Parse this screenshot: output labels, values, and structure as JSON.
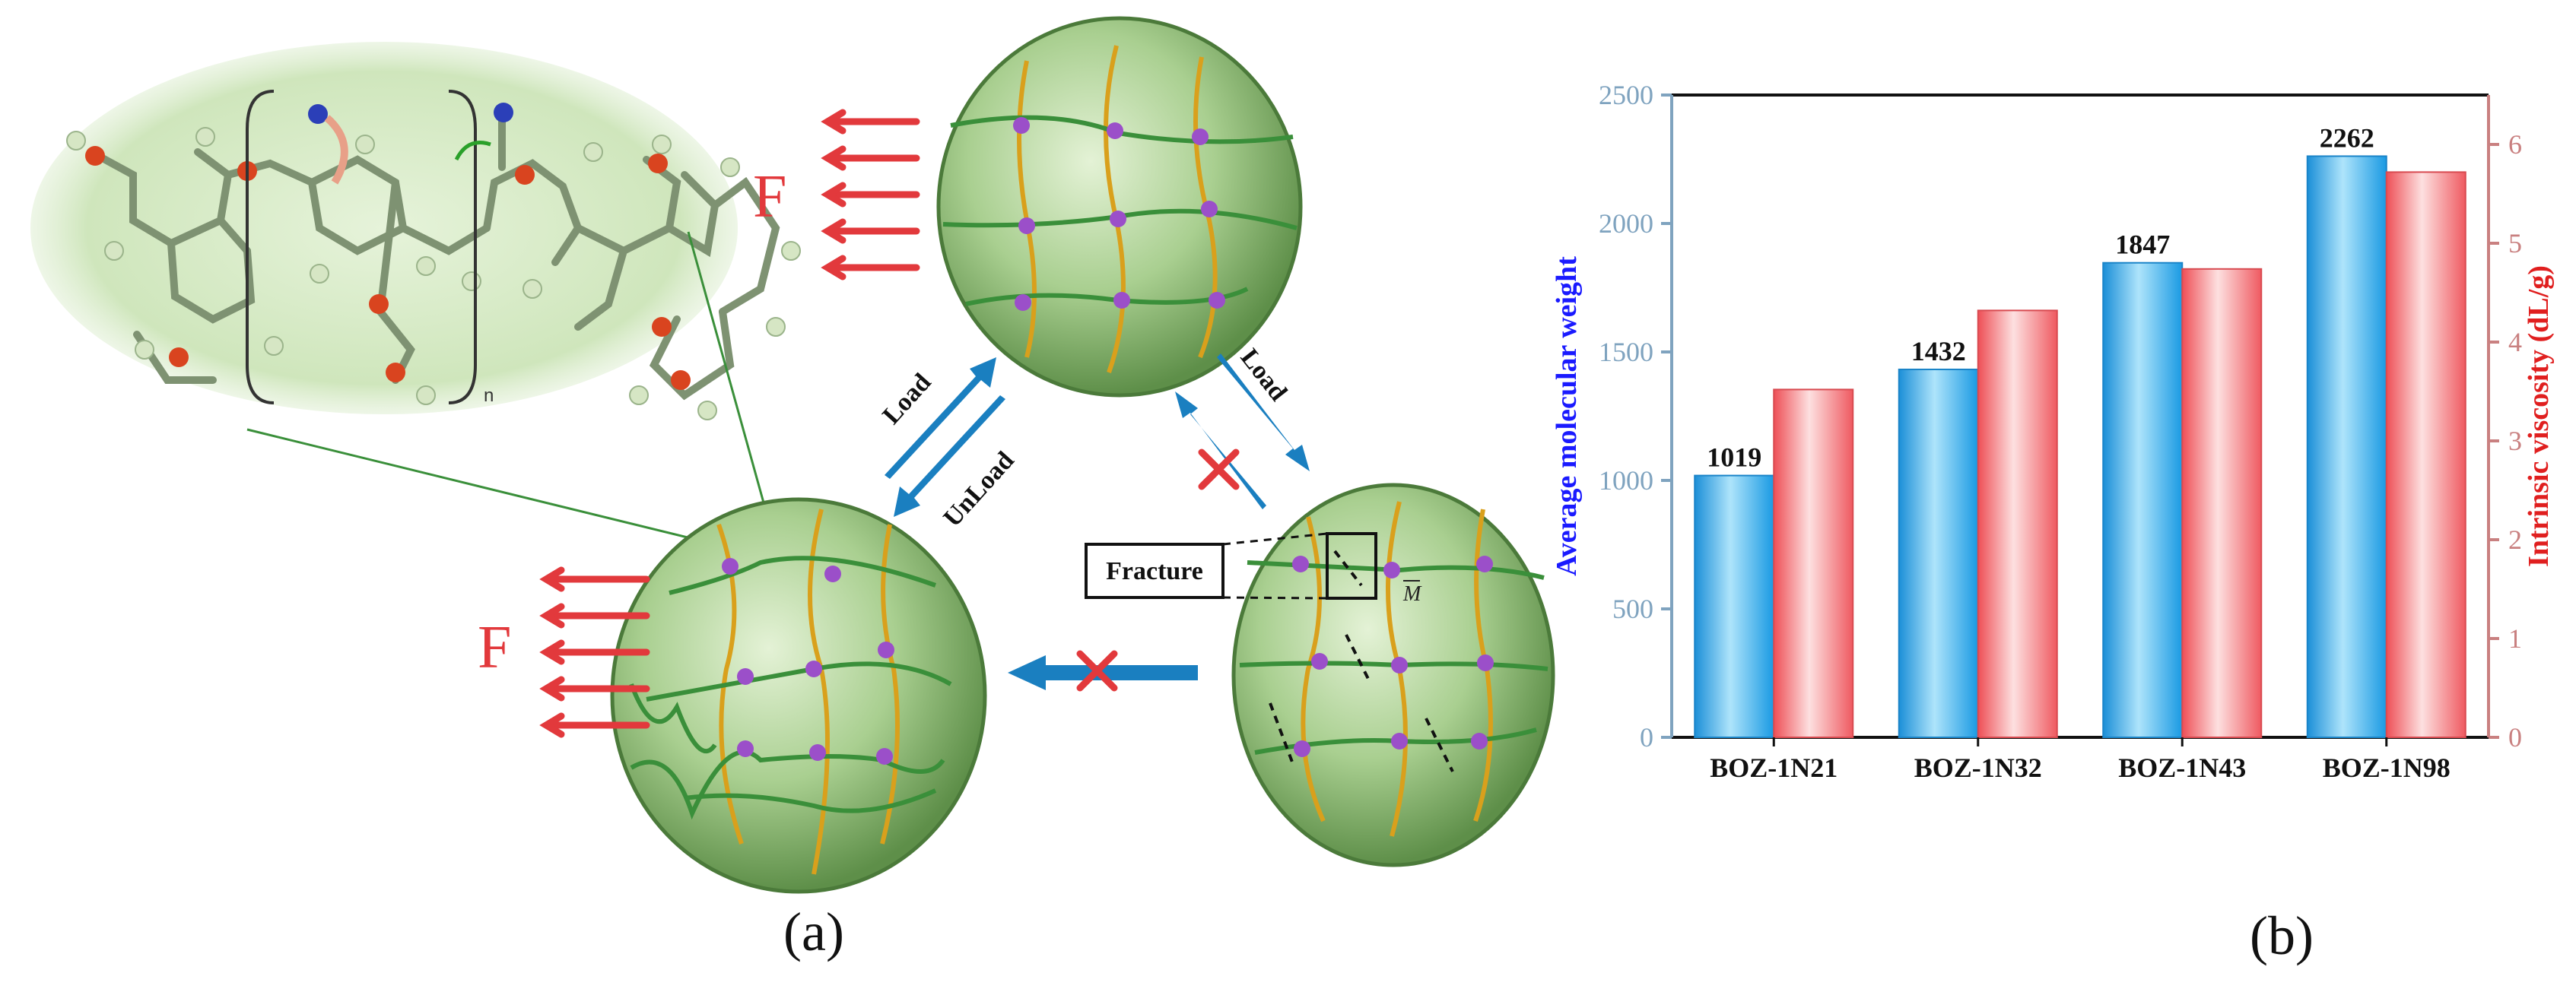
{
  "panel_a": {
    "label": "(a)",
    "force_label_top": "F",
    "force_label_bottom": "F",
    "load_label_left": "Load",
    "unload_label": "UnLoad",
    "load_label_right": "Load",
    "fracture_label": "Fracture",
    "m_label": "M",
    "repeat_subscript": "n",
    "colors": {
      "arrow_blue": "#1a7fc0",
      "force_red": "#e2393c",
      "sphere_green": "#8fbf78",
      "chain_green": "#3a8f3a",
      "chain_yellow": "#d9a01c",
      "node_purple": "#9b4fc9",
      "cross_red": "#e2393c"
    }
  },
  "panel_b": {
    "label": "(b)"
  },
  "chart_data": {
    "type": "bar",
    "categories": [
      "BOZ-1N21",
      "BOZ-1N32",
      "BOZ-1N43",
      "BOZ-1N98"
    ],
    "series": [
      {
        "name": "Average molecular weight",
        "axis": "left",
        "values": [
          1019,
          1432,
          1847,
          2262
        ],
        "color": "#29a8e8"
      },
      {
        "name": "Intrinsic viscosity",
        "axis": "right",
        "values": [
          3.52,
          4.32,
          4.74,
          5.72
        ],
        "color": "#f0696e"
      }
    ],
    "data_labels": [
      "1019",
      "1432",
      "1847",
      "2262"
    ],
    "ylabel": "Average molecular weight",
    "y2label": "Intrinsic viscosity (dL/g)",
    "ylim": [
      0,
      2500
    ],
    "yticks": [
      0,
      500,
      1000,
      1500,
      2000,
      2500
    ],
    "y2lim": [
      0,
      6.5
    ],
    "y2ticks": [
      0,
      1,
      2,
      3,
      4,
      5,
      6
    ],
    "left_axis_color": "#7fa3bf",
    "right_axis_color": "#c98080",
    "ylabel_color": "#1a1aff",
    "y2label_color": "#e01f1f",
    "grid": false
  }
}
